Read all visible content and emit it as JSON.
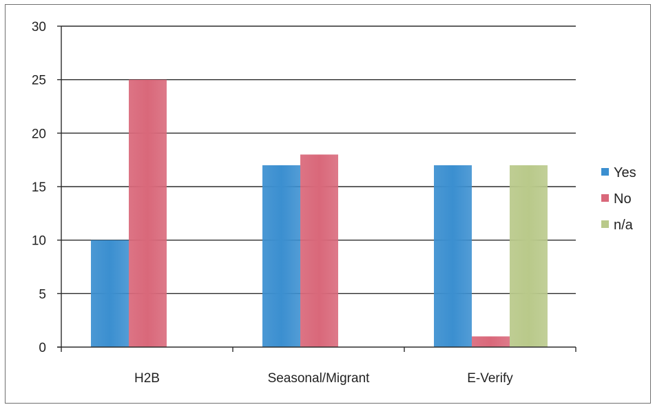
{
  "chart_data": {
    "type": "bar",
    "title": "",
    "xlabel": "",
    "ylabel": "",
    "categories": [
      "H2B",
      "Seasonal/Migrant",
      "E-Verify"
    ],
    "series": [
      {
        "name": "Yes",
        "values": [
          10,
          17,
          17
        ],
        "color": "#3b8fd0"
      },
      {
        "name": "No",
        "values": [
          25,
          18,
          1
        ],
        "color": "#d9687a"
      },
      {
        "name": "n/a",
        "values": [
          null,
          null,
          17
        ],
        "color": "#b9c98a"
      }
    ],
    "ylim": [
      0,
      30
    ],
    "yticks": [
      0,
      5,
      10,
      15,
      20,
      25,
      30
    ],
    "grid": true,
    "legend_position": "right"
  }
}
